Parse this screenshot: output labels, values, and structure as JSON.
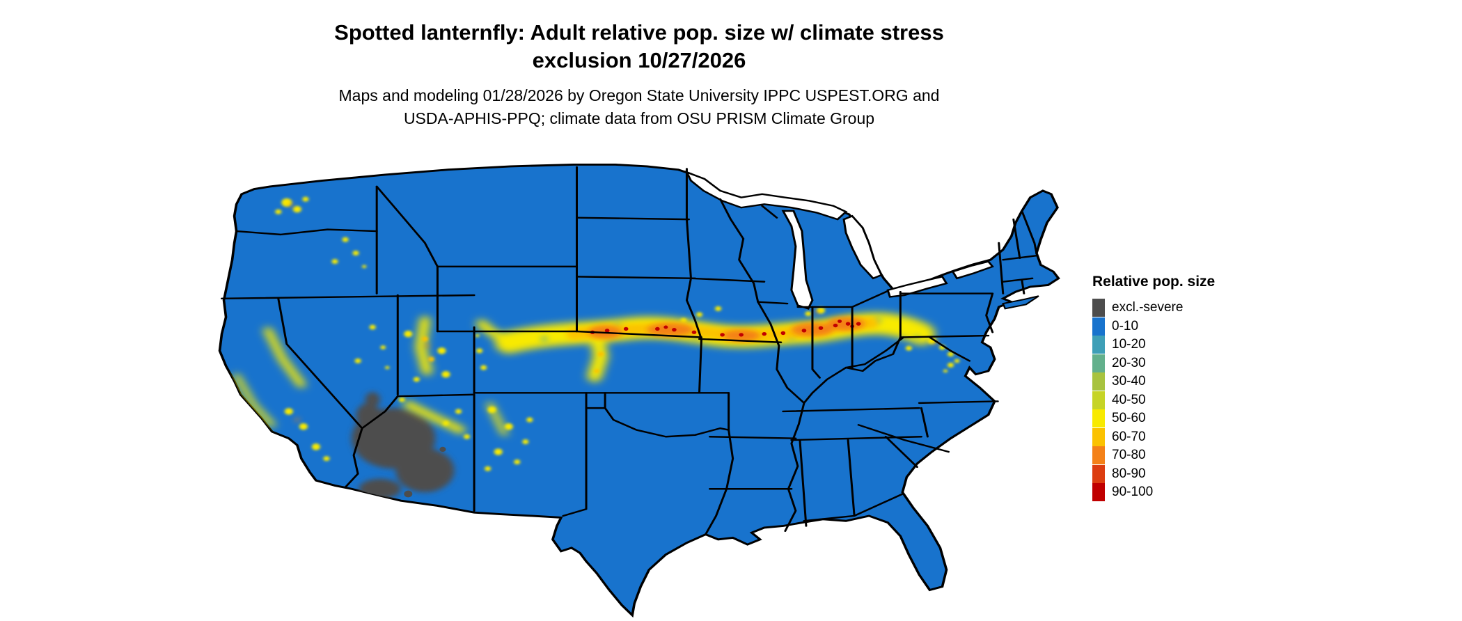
{
  "title": {
    "line1": "Spotted lanternfly: Adult relative pop. size w/ climate stress",
    "line2": "exclusion 10/27/2026"
  },
  "subtitle": {
    "line1": "Maps and modeling 01/28/2026 by Oregon State University IPPC USPEST.ORG and",
    "line2": "USDA-APHIS-PPQ; climate data from OSU PRISM Climate Group"
  },
  "legend": {
    "title": "Relative pop. size",
    "items": [
      {
        "label": "excl.-severe",
        "color": "#4d4d4d"
      },
      {
        "label": "0-10",
        "color": "#1873cd"
      },
      {
        "label": "10-20",
        "color": "#3e9fb7"
      },
      {
        "label": "20-30",
        "color": "#63b08c"
      },
      {
        "label": "30-40",
        "color": "#a8c33f"
      },
      {
        "label": "40-50",
        "color": "#c6d426"
      },
      {
        "label": "50-60",
        "color": "#f8ea00"
      },
      {
        "label": "60-70",
        "color": "#fbc200"
      },
      {
        "label": "70-80",
        "color": "#f48118"
      },
      {
        "label": "80-90",
        "color": "#dc3d10"
      },
      {
        "label": "90-100",
        "color": "#c00000"
      }
    ]
  },
  "map": {
    "region": "Continental United States",
    "colors": {
      "land": "#1873cd",
      "excl": "#4d4d4d",
      "green": "#63b08c",
      "yellow": "#f8ea00",
      "amber": "#fbc200",
      "orange": "#f48118",
      "red": "#c00000",
      "lake": "#ffffff",
      "border": "#000000"
    }
  }
}
